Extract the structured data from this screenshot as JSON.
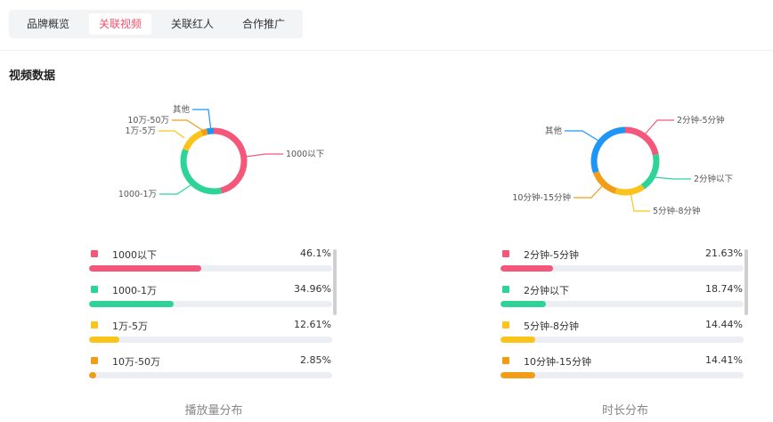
{
  "tabs": [
    {
      "label": "品牌概览",
      "active": false
    },
    {
      "label": "关联视频",
      "active": true
    },
    {
      "label": "关联红人",
      "active": false
    },
    {
      "label": "合作推广",
      "active": false
    }
  ],
  "section_title": "视频数据",
  "colors": {
    "accent": "#f0506e"
  },
  "chart_data": [
    {
      "type": "pie",
      "title": "播放量分布",
      "slices": [
        {
          "label": "1000以下",
          "value": 46.1,
          "display": "46.1%",
          "color": "#f4577a"
        },
        {
          "label": "1000-1万",
          "value": 34.96,
          "display": "34.96%",
          "color": "#2ed398"
        },
        {
          "label": "1万-5万",
          "value": 12.61,
          "display": "12.61%",
          "color": "#fcc41a"
        },
        {
          "label": "10万-50万",
          "value": 2.85,
          "display": "2.85%",
          "color": "#f39c16"
        },
        {
          "label": "其他",
          "value": 3.48,
          "display": "",
          "color": "#1f96f3"
        }
      ]
    },
    {
      "type": "pie",
      "title": "时长分布",
      "slices": [
        {
          "label": "2分钟-5分钟",
          "value": 21.63,
          "display": "21.63%",
          "color": "#f4577a"
        },
        {
          "label": "2分钟以下",
          "value": 18.74,
          "display": "18.74%",
          "color": "#2ed398"
        },
        {
          "label": "5分钟-8分钟",
          "value": 14.44,
          "display": "14.44%",
          "color": "#fcc41a"
        },
        {
          "label": "10分钟-15分钟",
          "value": 14.41,
          "display": "14.41%",
          "color": "#f39c16"
        },
        {
          "label": "其他",
          "value": 30.78,
          "display": "",
          "color": "#1f96f3"
        }
      ]
    }
  ]
}
